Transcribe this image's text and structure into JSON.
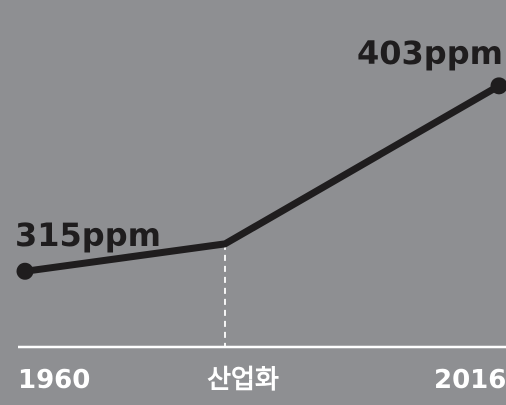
{
  "chart_data": {
    "type": "line",
    "x": [
      "1960",
      "산업화",
      "2016"
    ],
    "values": [
      315,
      328,
      403
    ],
    "point_labels": [
      "315ppm",
      "",
      "403ppm"
    ],
    "markers": [
      true,
      false,
      true
    ],
    "ylabel": "",
    "xlabel": "",
    "ylim": [
      280,
      420
    ],
    "grid": false,
    "colors": {
      "background": "#8e8f92",
      "line": "#1f1d1e",
      "axis": "#ffffff",
      "label": "#1f1d1e",
      "tick_label": "#ffffff"
    }
  }
}
